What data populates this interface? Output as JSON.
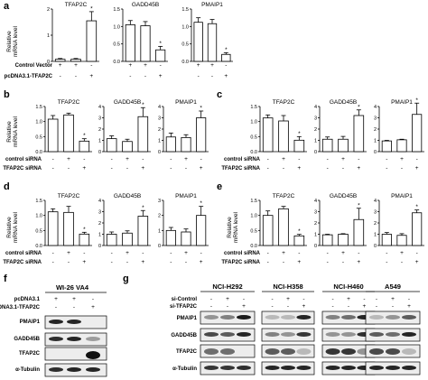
{
  "chart_data": [
    {
      "panel": "a",
      "type": "bar",
      "ylabel": "Relative mRNA level",
      "rows": [
        "Control Vector",
        "pcDNA3.1-TFAP2C"
      ],
      "signs": [
        [
          "+",
          "+",
          "-"
        ],
        [
          "-",
          "-",
          "+"
        ]
      ],
      "subplots": [
        {
          "title": "TFAP2C",
          "ylim": [
            0,
            2
          ],
          "yticks": [
            "0",
            "1",
            "2"
          ],
          "values": [
            0.08,
            0.08,
            1.55
          ],
          "errors": [
            0.03,
            0.03,
            0.35
          ],
          "stars": [
            false,
            false,
            true
          ]
        },
        {
          "title": "GADD45B",
          "ylim": [
            0,
            1.5
          ],
          "yticks": [
            "0.0",
            "0.5",
            "1.0",
            "1.5"
          ],
          "values": [
            1.05,
            1.02,
            0.33
          ],
          "errors": [
            0.12,
            0.12,
            0.1
          ],
          "stars": [
            false,
            false,
            true
          ]
        },
        {
          "title": "PMAIP1",
          "ylim": [
            0,
            1.5
          ],
          "yticks": [
            "0.0",
            "0.5",
            "1.0",
            "1.5"
          ],
          "values": [
            1.12,
            1.08,
            0.2
          ],
          "errors": [
            0.13,
            0.12,
            0.05
          ],
          "stars": [
            false,
            false,
            true
          ]
        }
      ]
    },
    {
      "panel": "b",
      "type": "bar",
      "ylabel": "Relative mRNA level",
      "rows": [
        "control siRNA",
        "TFAP2C siRNA"
      ],
      "signs": [
        [
          "-",
          "+",
          "-"
        ],
        [
          "-",
          "-",
          "+"
        ]
      ],
      "subplots": [
        {
          "title": "TFAP2C",
          "ylim": [
            0,
            1.5
          ],
          "yticks": [
            "0.0",
            "0.5",
            "1.0",
            "1.5"
          ],
          "values": [
            1.08,
            1.22,
            0.35
          ],
          "errors": [
            0.12,
            0.06,
            0.08
          ],
          "stars": [
            false,
            false,
            true
          ]
        },
        {
          "title": "GADD45B",
          "ylim": [
            0,
            4
          ],
          "yticks": [
            "0",
            "1",
            "2",
            "3",
            "4"
          ],
          "values": [
            1.15,
            0.9,
            3.1
          ],
          "errors": [
            0.25,
            0.2,
            0.8
          ],
          "stars": [
            false,
            false,
            true
          ]
        },
        {
          "title": "PMAIP1",
          "ylim": [
            0,
            4
          ],
          "yticks": [
            "0",
            "1",
            "2",
            "3",
            "4"
          ],
          "values": [
            1.3,
            1.25,
            3.0
          ],
          "errors": [
            0.35,
            0.25,
            0.6
          ],
          "stars": [
            false,
            false,
            true
          ]
        }
      ]
    },
    {
      "panel": "c",
      "type": "bar",
      "ylabel": "",
      "rows": [
        "control siRNA",
        "TFAP2C siRNA"
      ],
      "signs": [
        [
          "-",
          "+",
          "-"
        ],
        [
          "-",
          "-",
          "+"
        ]
      ],
      "subplots": [
        {
          "title": "TFAP2C",
          "ylim": [
            0,
            1.5
          ],
          "yticks": [
            "0.0",
            "0.5",
            "1.0",
            "1.5"
          ],
          "values": [
            1.12,
            1.02,
            0.38
          ],
          "errors": [
            0.1,
            0.18,
            0.12
          ],
          "stars": [
            false,
            false,
            true
          ]
        },
        {
          "title": "GADD45B",
          "ylim": [
            0,
            4
          ],
          "yticks": [
            "0",
            "1",
            "2",
            "3",
            "4"
          ],
          "values": [
            1.1,
            1.1,
            3.2
          ],
          "errors": [
            0.2,
            0.25,
            0.5
          ],
          "stars": [
            false,
            false,
            true
          ]
        },
        {
          "title": "PMAIP1",
          "ylim": [
            0,
            4
          ],
          "yticks": [
            "0",
            "1",
            "2",
            "3",
            "4"
          ],
          "values": [
            0.95,
            1.05,
            3.3
          ],
          "errors": [
            0.05,
            0.05,
            1.0
          ],
          "stars": [
            false,
            false,
            true
          ]
        }
      ]
    },
    {
      "panel": "d",
      "type": "bar",
      "ylabel": "Relative mRNA level",
      "rows": [
        "control siRNA",
        "TFAP2C siRNA"
      ],
      "signs": [
        [
          "-",
          "+",
          "-"
        ],
        [
          "-",
          "-",
          "+"
        ]
      ],
      "subplots": [
        {
          "title": "TFAP2C",
          "ylim": [
            0,
            1.5
          ],
          "yticks": [
            "0.0",
            "0.5",
            "1.0",
            "1.5"
          ],
          "values": [
            1.12,
            1.1,
            0.38
          ],
          "errors": [
            0.1,
            0.2,
            0.06
          ],
          "stars": [
            false,
            false,
            true
          ]
        },
        {
          "title": "GADD45B",
          "ylim": [
            0,
            4
          ],
          "yticks": [
            "0",
            "1",
            "2",
            "3",
            "4"
          ],
          "values": [
            1.0,
            1.1,
            2.6
          ],
          "errors": [
            0.2,
            0.2,
            0.5
          ],
          "stars": [
            false,
            false,
            true
          ]
        },
        {
          "title": "PMAIP1",
          "ylim": [
            0,
            3
          ],
          "yticks": [
            "0",
            "1",
            "2",
            "3"
          ],
          "values": [
            1.0,
            0.9,
            2.0
          ],
          "errors": [
            0.2,
            0.2,
            0.6
          ],
          "stars": [
            false,
            false,
            true
          ]
        }
      ]
    },
    {
      "panel": "e",
      "type": "bar",
      "ylabel": "Relative mRNA level",
      "rows": [
        "control siRNA",
        "TFAP2C siRNA"
      ],
      "signs": [
        [
          "-",
          "+",
          "-"
        ],
        [
          "-",
          "-",
          "+"
        ]
      ],
      "subplots": [
        {
          "title": "TFAP2C",
          "ylim": [
            0,
            1.5
          ],
          "yticks": [
            "0.0",
            "0.5",
            "1.0",
            "1.5"
          ],
          "values": [
            1.0,
            1.22,
            0.32
          ],
          "errors": [
            0.15,
            0.08,
            0.05
          ],
          "stars": [
            false,
            false,
            true
          ]
        },
        {
          "title": "GADD45B",
          "ylim": [
            0,
            4
          ],
          "yticks": [
            "0",
            "1",
            "2",
            "3",
            "4"
          ],
          "values": [
            0.95,
            1.0,
            2.3
          ],
          "errors": [
            0.05,
            0.05,
            1.0
          ],
          "stars": [
            false,
            false,
            true
          ]
        },
        {
          "title": "PMAIP1",
          "ylim": [
            0,
            4
          ],
          "yticks": [
            "0",
            "1",
            "2",
            "3",
            "4"
          ],
          "values": [
            1.0,
            0.9,
            2.9
          ],
          "errors": [
            0.15,
            0.15,
            0.25
          ],
          "stars": [
            false,
            false,
            true
          ]
        }
      ]
    }
  ],
  "blots": [
    {
      "panel": "f",
      "cell_line": "WI-26 VA4",
      "rows": [
        "pcDNA3.1",
        "pcDNA3.1-TFAP2C"
      ],
      "signs": [
        [
          "+",
          "+",
          "-"
        ],
        [
          "-",
          "-",
          "+"
        ]
      ],
      "proteins": [
        "PMAIP1",
        "GADD45B",
        "TFAP2C",
        "α-Tubulin"
      ]
    },
    {
      "panel": "g",
      "rows": [
        "si-Control",
        "si-TFAP2C"
      ],
      "signs": [
        [
          "-",
          "+",
          "-"
        ],
        [
          "-",
          "-",
          "+"
        ]
      ],
      "proteins": [
        "PMAIP1",
        "GADD45B",
        "TFAP2C",
        "α-Tubulin"
      ],
      "cell_lines": [
        "NCI-H292",
        "NCI-H358",
        "NCI-H460",
        "A549"
      ]
    }
  ]
}
